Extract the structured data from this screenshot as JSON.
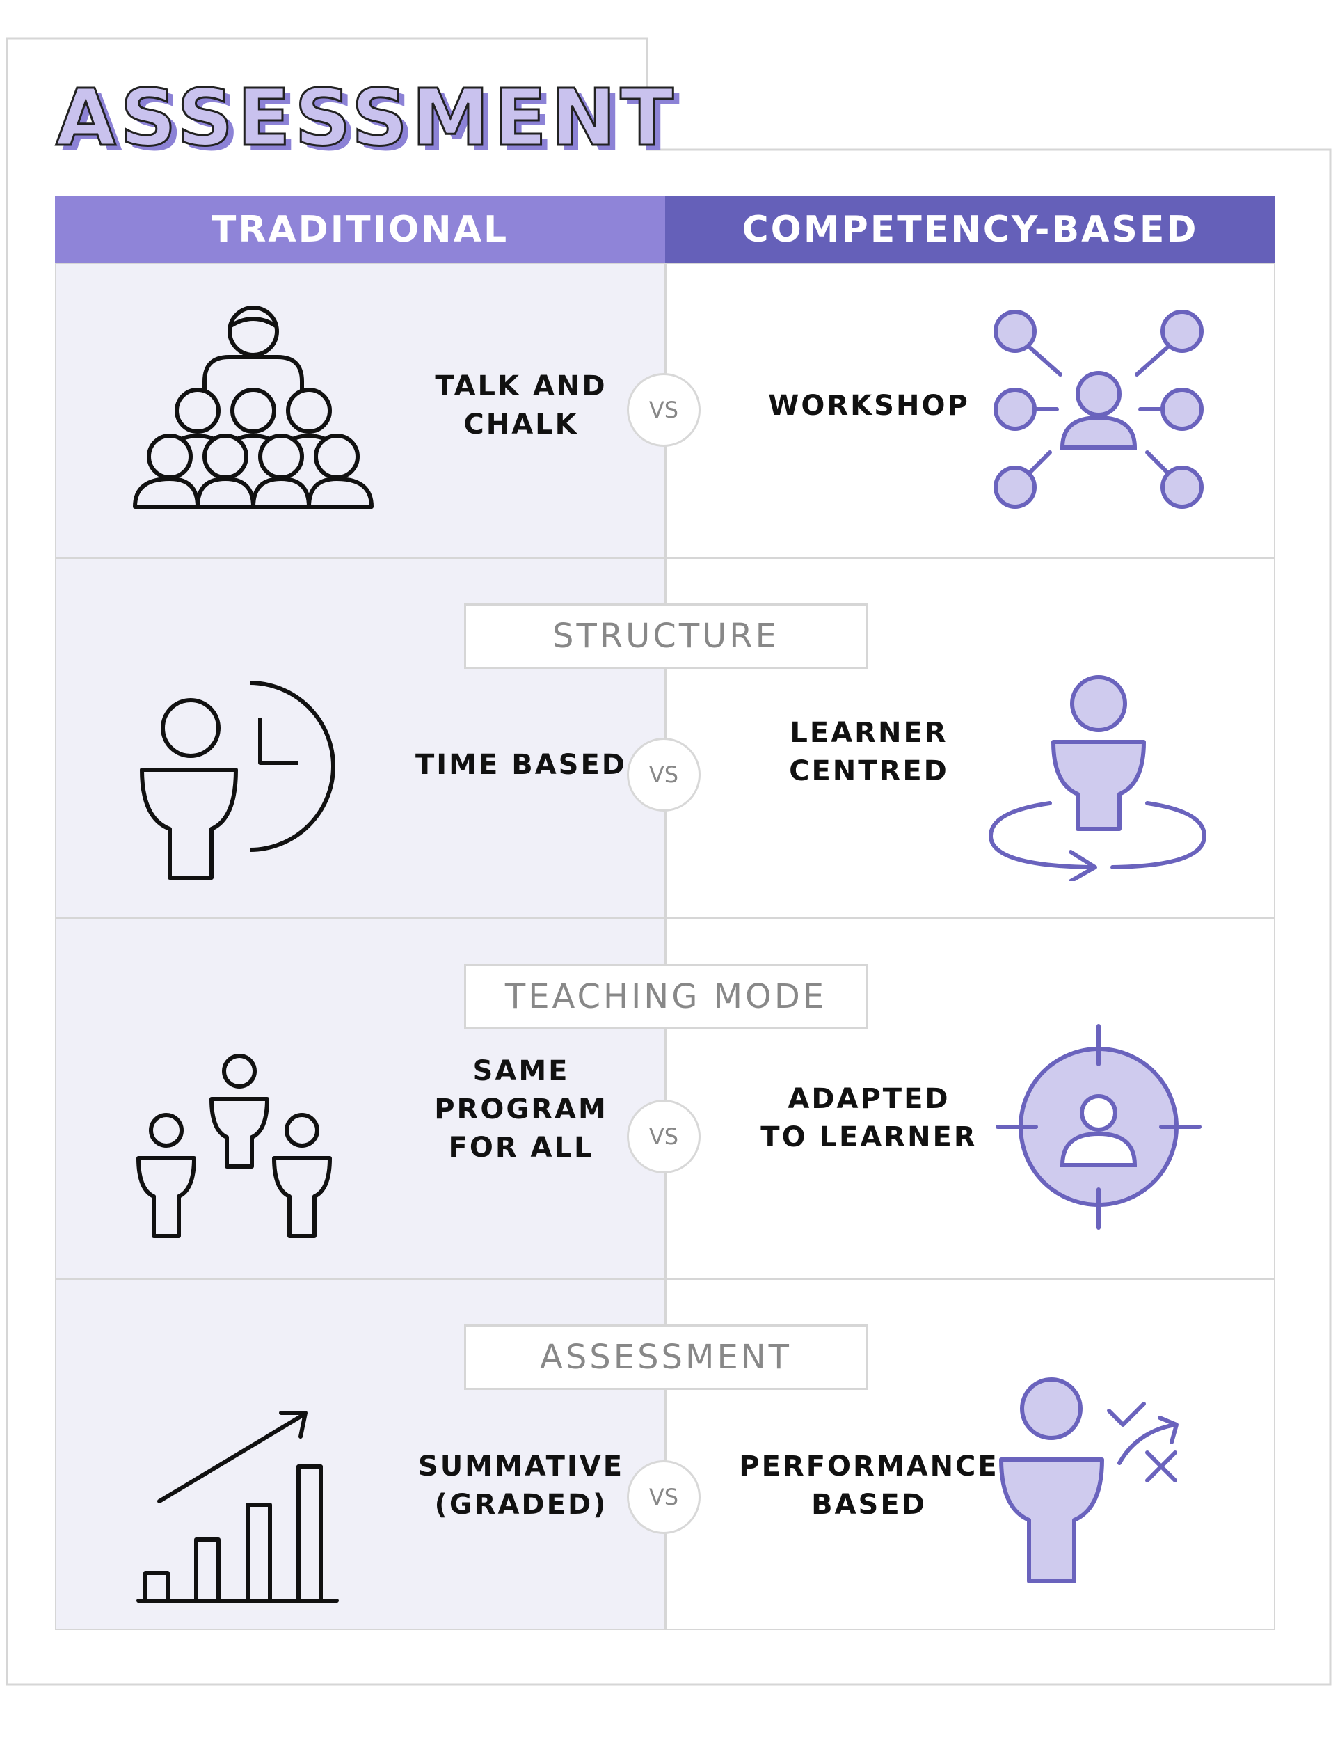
{
  "title": "ASSESSMENT",
  "columns": {
    "left": "TRADITIONAL",
    "right": "COMPETENCY-BASED"
  },
  "vs_label": "VS",
  "rows": [
    {
      "section": "",
      "left_label": "TALK AND\nCHALK",
      "right_label": "WORKSHOP",
      "left_icon": "classroom-audience-icon",
      "right_icon": "workshop-network-icon"
    },
    {
      "section": "STRUCTURE",
      "left_label": "TIME BASED",
      "right_label": "LEARNER\nCENTRED",
      "left_icon": "person-clock-icon",
      "right_icon": "person-rotate-icon"
    },
    {
      "section": "TEACHING MODE",
      "left_label": "SAME\nPROGRAM\nFOR ALL",
      "right_label": "ADAPTED\nTO LEARNER",
      "left_icon": "group-of-learners-icon",
      "right_icon": "target-person-icon"
    },
    {
      "section": "ASSESSMENT",
      "left_label": "SUMMATIVE\n(GRADED)",
      "right_label": "PERFORMANCE\nBASED",
      "left_icon": "bar-chart-growth-icon",
      "right_icon": "person-check-cross-icon"
    }
  ],
  "colors": {
    "traditional_header": "#8f84d8",
    "competency_header": "#6560b9",
    "icon_fill": "#cfcbee",
    "icon_stroke": "#6a63bd",
    "left_background": "#f0f0f8"
  }
}
